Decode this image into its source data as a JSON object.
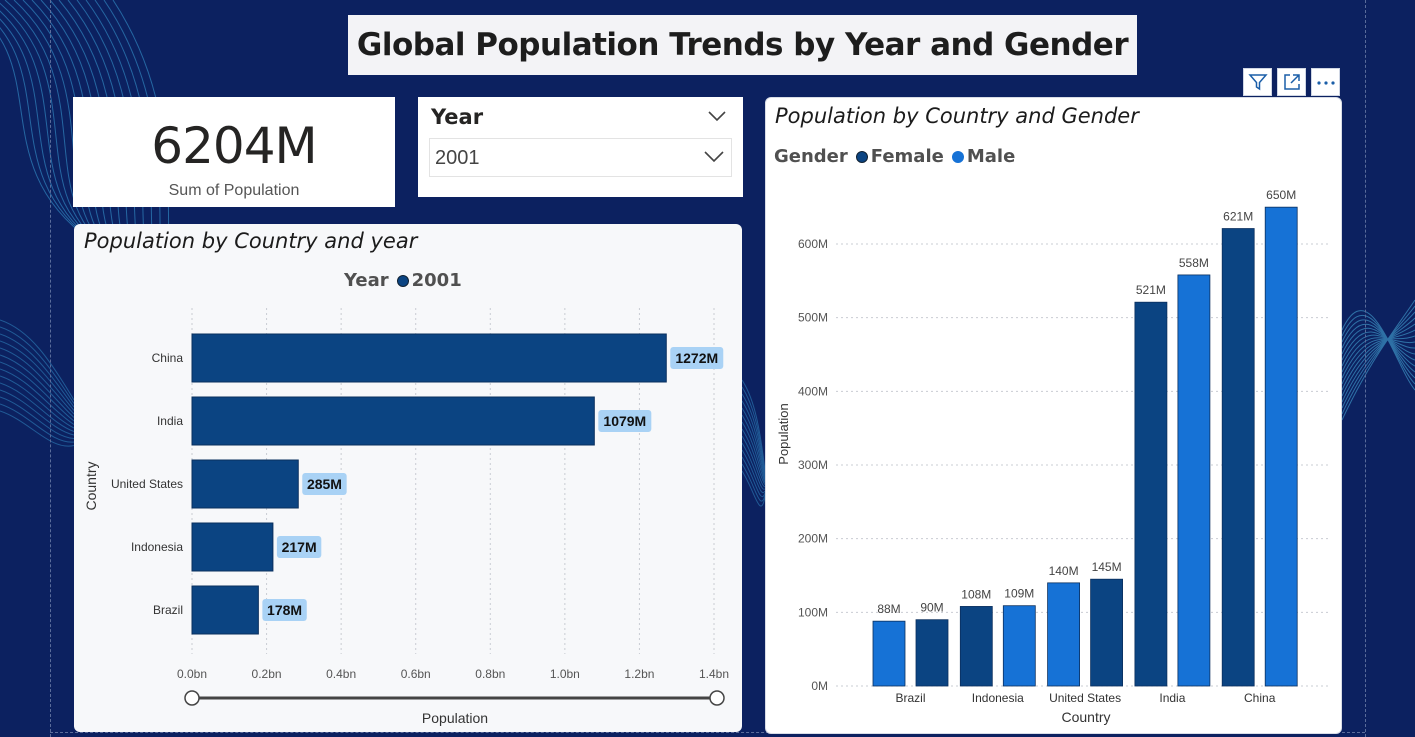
{
  "page": {
    "title": "Global Population Trends by Year and Gender"
  },
  "kpi": {
    "value": "6204M",
    "label": "Sum of Population"
  },
  "slicer": {
    "header": "Year",
    "selected": "2001"
  },
  "toolbar": {
    "filter_icon": "filter-icon",
    "focus_icon": "focus-mode-icon",
    "more_icon": "more-options-icon"
  },
  "colors": {
    "background": "#0c2160",
    "bar_dark": "#0b4482",
    "bar_light": "#1672d6",
    "label_bg": "#a9d2f5"
  },
  "chart_data": [
    {
      "type": "bar",
      "orientation": "horizontal",
      "title": "Population by Country and year",
      "legend_title": "Year",
      "series": [
        {
          "name": "2001",
          "values": [
            1272,
            1079,
            285,
            217,
            178
          ]
        }
      ],
      "categories": [
        "China",
        "India",
        "United States",
        "Indonesia",
        "Brazil"
      ],
      "data_labels": [
        "1272M",
        "1079M",
        "285M",
        "217M",
        "178M"
      ],
      "xlabel": "Population",
      "ylabel": "Country",
      "x_ticks": [
        "0.0bn",
        "0.2bn",
        "0.4bn",
        "0.6bn",
        "0.8bn",
        "1.0bn",
        "1.2bn",
        "1.4bn"
      ],
      "xlim": [
        0,
        1400
      ],
      "units": "M",
      "grid": true,
      "legend_position": "top-center"
    },
    {
      "type": "bar",
      "orientation": "vertical",
      "title": "Population by Country and Gender",
      "legend_title": "Gender",
      "legend": [
        {
          "name": "Female",
          "color": "#0b4482"
        },
        {
          "name": "Male",
          "color": "#1672d6"
        }
      ],
      "categories": [
        "Brazil",
        "Indonesia",
        "United States",
        "India",
        "China"
      ],
      "bars": [
        {
          "category": "Brazil",
          "value": 88,
          "label": "88M",
          "color": "#1672d6"
        },
        {
          "category": "Brazil",
          "value": 90,
          "label": "90M",
          "color": "#0b4482"
        },
        {
          "category": "Indonesia",
          "value": 108,
          "label": "108M",
          "color": "#0b4482"
        },
        {
          "category": "Indonesia",
          "value": 109,
          "label": "109M",
          "color": "#1672d6"
        },
        {
          "category": "United States",
          "value": 140,
          "label": "140M",
          "color": "#1672d6"
        },
        {
          "category": "United States",
          "value": 145,
          "label": "145M",
          "color": "#0b4482"
        },
        {
          "category": "India",
          "value": 521,
          "label": "521M",
          "color": "#0b4482"
        },
        {
          "category": "India",
          "value": 558,
          "label": "558M",
          "color": "#1672d6"
        },
        {
          "category": "China",
          "value": 621,
          "label": "621M",
          "color": "#0b4482"
        },
        {
          "category": "China",
          "value": 650,
          "label": "650M",
          "color": "#1672d6"
        }
      ],
      "xlabel": "Country",
      "ylabel": "Population",
      "y_ticks": [
        "0M",
        "100M",
        "200M",
        "300M",
        "400M",
        "500M",
        "600M"
      ],
      "ylim": [
        0,
        700
      ],
      "units": "M",
      "grid": true,
      "legend_position": "top-left"
    }
  ]
}
